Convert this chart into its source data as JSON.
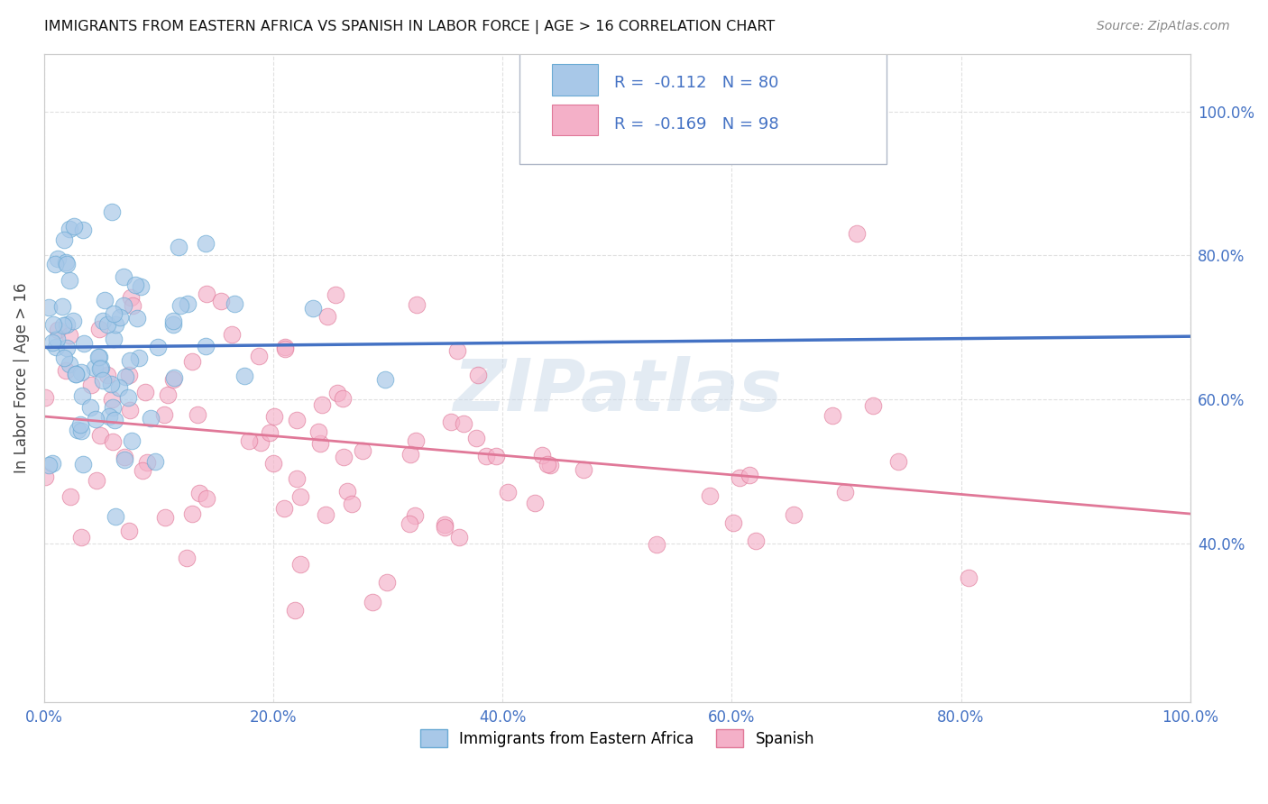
{
  "title": "IMMIGRANTS FROM EASTERN AFRICA VS SPANISH IN LABOR FORCE | AGE > 16 CORRELATION CHART",
  "source": "Source: ZipAtlas.com",
  "ylabel": "In Labor Force | Age > 16",
  "x_tick_labels": [
    "0.0%",
    "20.0%",
    "40.0%",
    "60.0%",
    "80.0%",
    "100.0%"
  ],
  "y_tick_labels_right": [
    "100.0%",
    "80.0%",
    "60.0%",
    "40.0%"
  ],
  "x_tick_positions": [
    0.0,
    0.2,
    0.4,
    0.6,
    0.8,
    1.0
  ],
  "y_tick_positions": [
    1.0,
    0.8,
    0.6,
    0.4
  ],
  "series1_color": "#a8c8e8",
  "series1_edge": "#6aaad4",
  "series1_line_color": "#4472c4",
  "series2_color": "#f4b0c8",
  "series2_edge": "#e07898",
  "series2_line_color": "#e07898",
  "legend_box_color": "#a8c8e8",
  "legend_box2_color": "#f4b0c8",
  "R1": -0.112,
  "N1": 80,
  "R2": -0.169,
  "N2": 98,
  "background_color": "#ffffff",
  "grid_color": "#cccccc",
  "watermark": "ZIPatlas",
  "xlim": [
    0.0,
    1.0
  ],
  "ylim": [
    0.18,
    1.08
  ],
  "figsize": [
    14.06,
    8.92
  ],
  "dpi": 100,
  "seed1": 42,
  "seed2": 77
}
